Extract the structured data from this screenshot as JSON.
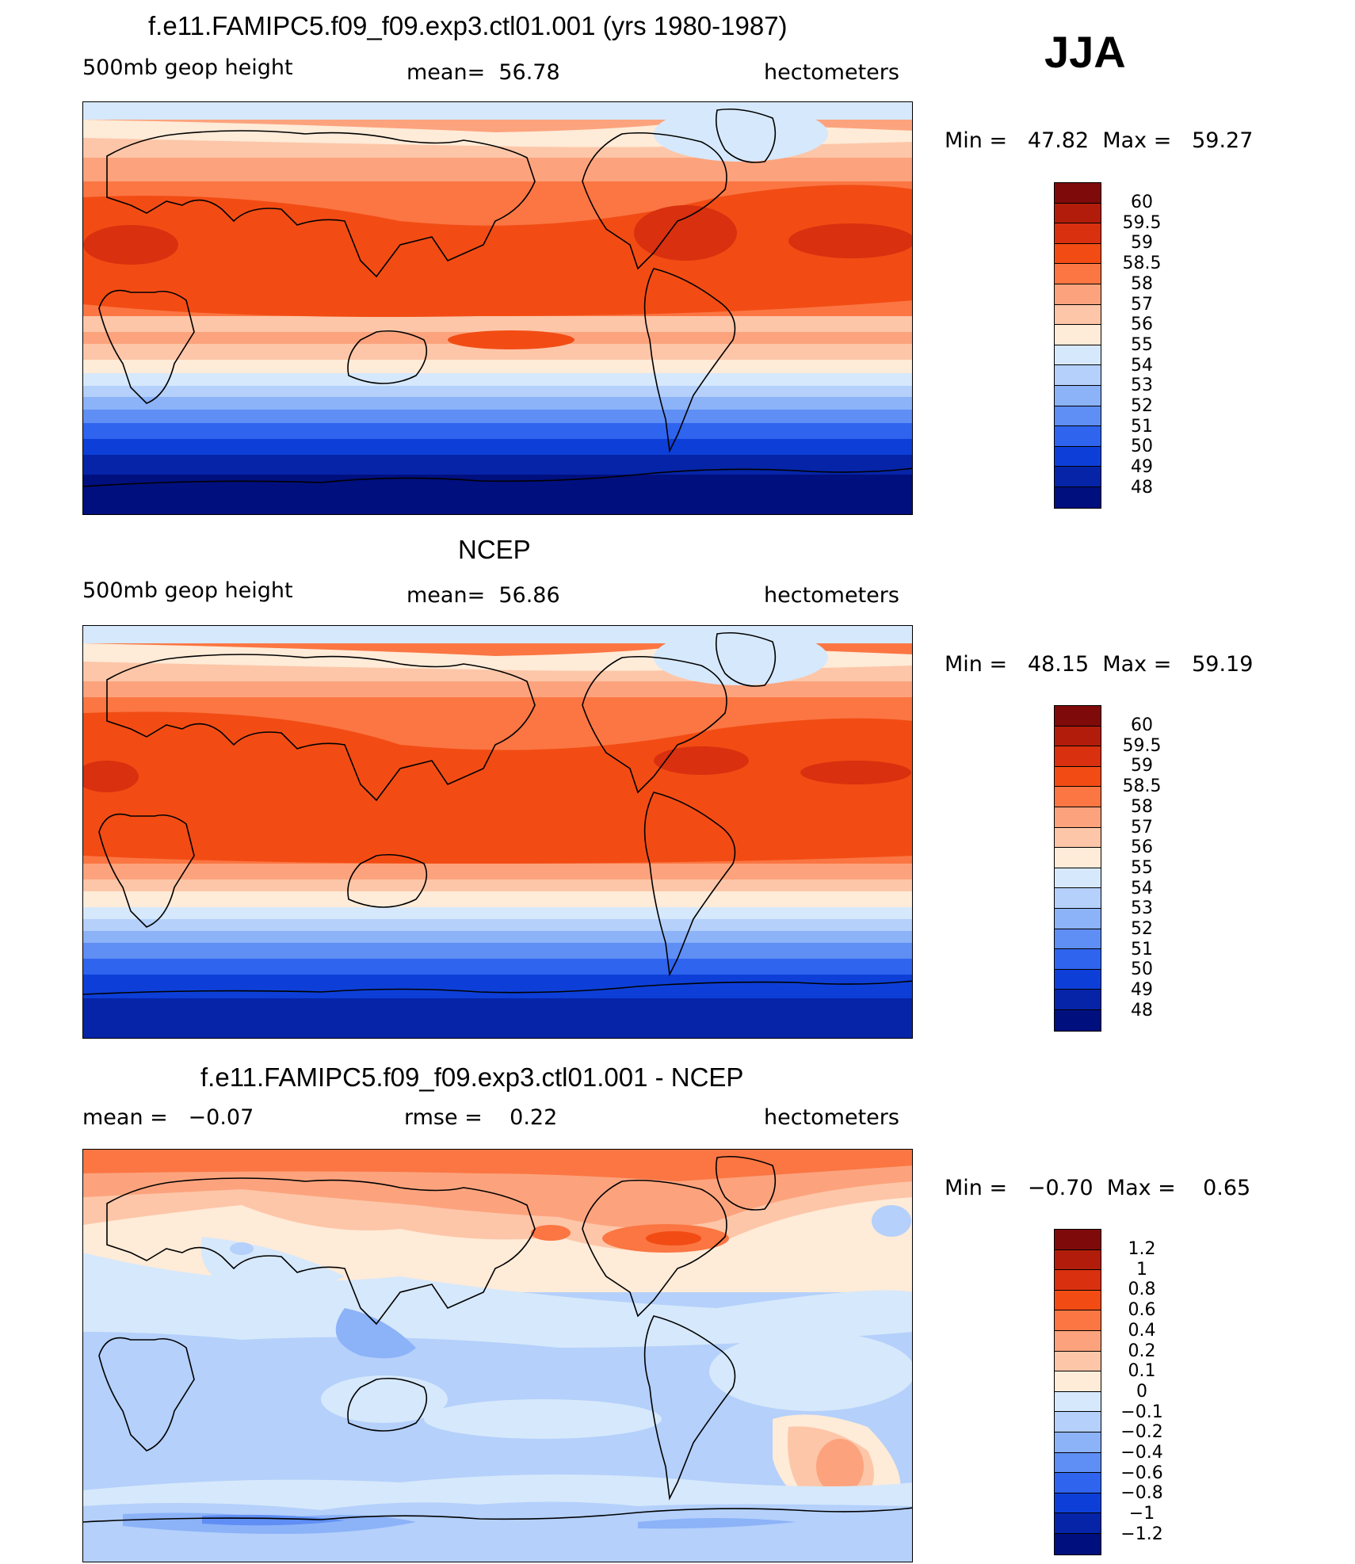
{
  "header": {
    "season": "JJA"
  },
  "panels": [
    {
      "title": "f.e11.FAMIPC5.f09_f09.exp3.ctl01.001 (yrs 1980-1987)",
      "field": "500mb geop height",
      "stat": "mean=  56.78",
      "units": "hectometers",
      "minmax": "Min =   47.82  Max =   59.27",
      "legend_labels": [
        "60",
        "59.5",
        "59",
        "58.5",
        "58",
        "57",
        "56",
        "55",
        "54",
        "53",
        "52",
        "51",
        "50",
        "49",
        "48"
      ]
    },
    {
      "title": "NCEP",
      "field": "500mb geop height",
      "stat": "mean=  56.86",
      "units": "hectometers",
      "minmax": "Min =   48.15  Max =   59.19",
      "legend_labels": [
        "60",
        "59.5",
        "59",
        "58.5",
        "58",
        "57",
        "56",
        "55",
        "54",
        "53",
        "52",
        "51",
        "50",
        "49",
        "48"
      ]
    },
    {
      "title": "f.e11.FAMIPC5.f09_f09.exp3.ctl01.001 - NCEP",
      "field": "mean =   −0.07",
      "stat": "rmse =    0.22",
      "units": "hectometers",
      "minmax": "Min =   −0.70  Max =    0.65",
      "legend_labels": [
        "1.2",
        "1",
        "0.8",
        "0.6",
        "0.4",
        "0.2",
        "0.1",
        "0",
        "−0.1",
        "−0.2",
        "−0.4",
        "−0.6",
        "−0.8",
        "−1",
        "−1.2"
      ]
    }
  ],
  "colors": {
    "abs_scale": [
      "#7f0a0a",
      "#b11d0a",
      "#d9300f",
      "#f24c14",
      "#fb7643",
      "#fca37d",
      "#fdc6a8",
      "#feebd8",
      "#d6e8fb",
      "#b4d0fb",
      "#8cb2f8",
      "#5f8ef4",
      "#2f64ef",
      "#0d3fd8",
      "#0624a8",
      "#000f7e"
    ],
    "diff_scale": [
      "#7f0a0a",
      "#b11d0a",
      "#d9300f",
      "#f24c14",
      "#fb7643",
      "#fca37d",
      "#fdc6a8",
      "#feebd8",
      "#d6e8fb",
      "#b4d0fb",
      "#8cb2f8",
      "#5f8ef4",
      "#2f64ef",
      "#0d3fd8",
      "#0624a8",
      "#000f7e"
    ]
  }
}
